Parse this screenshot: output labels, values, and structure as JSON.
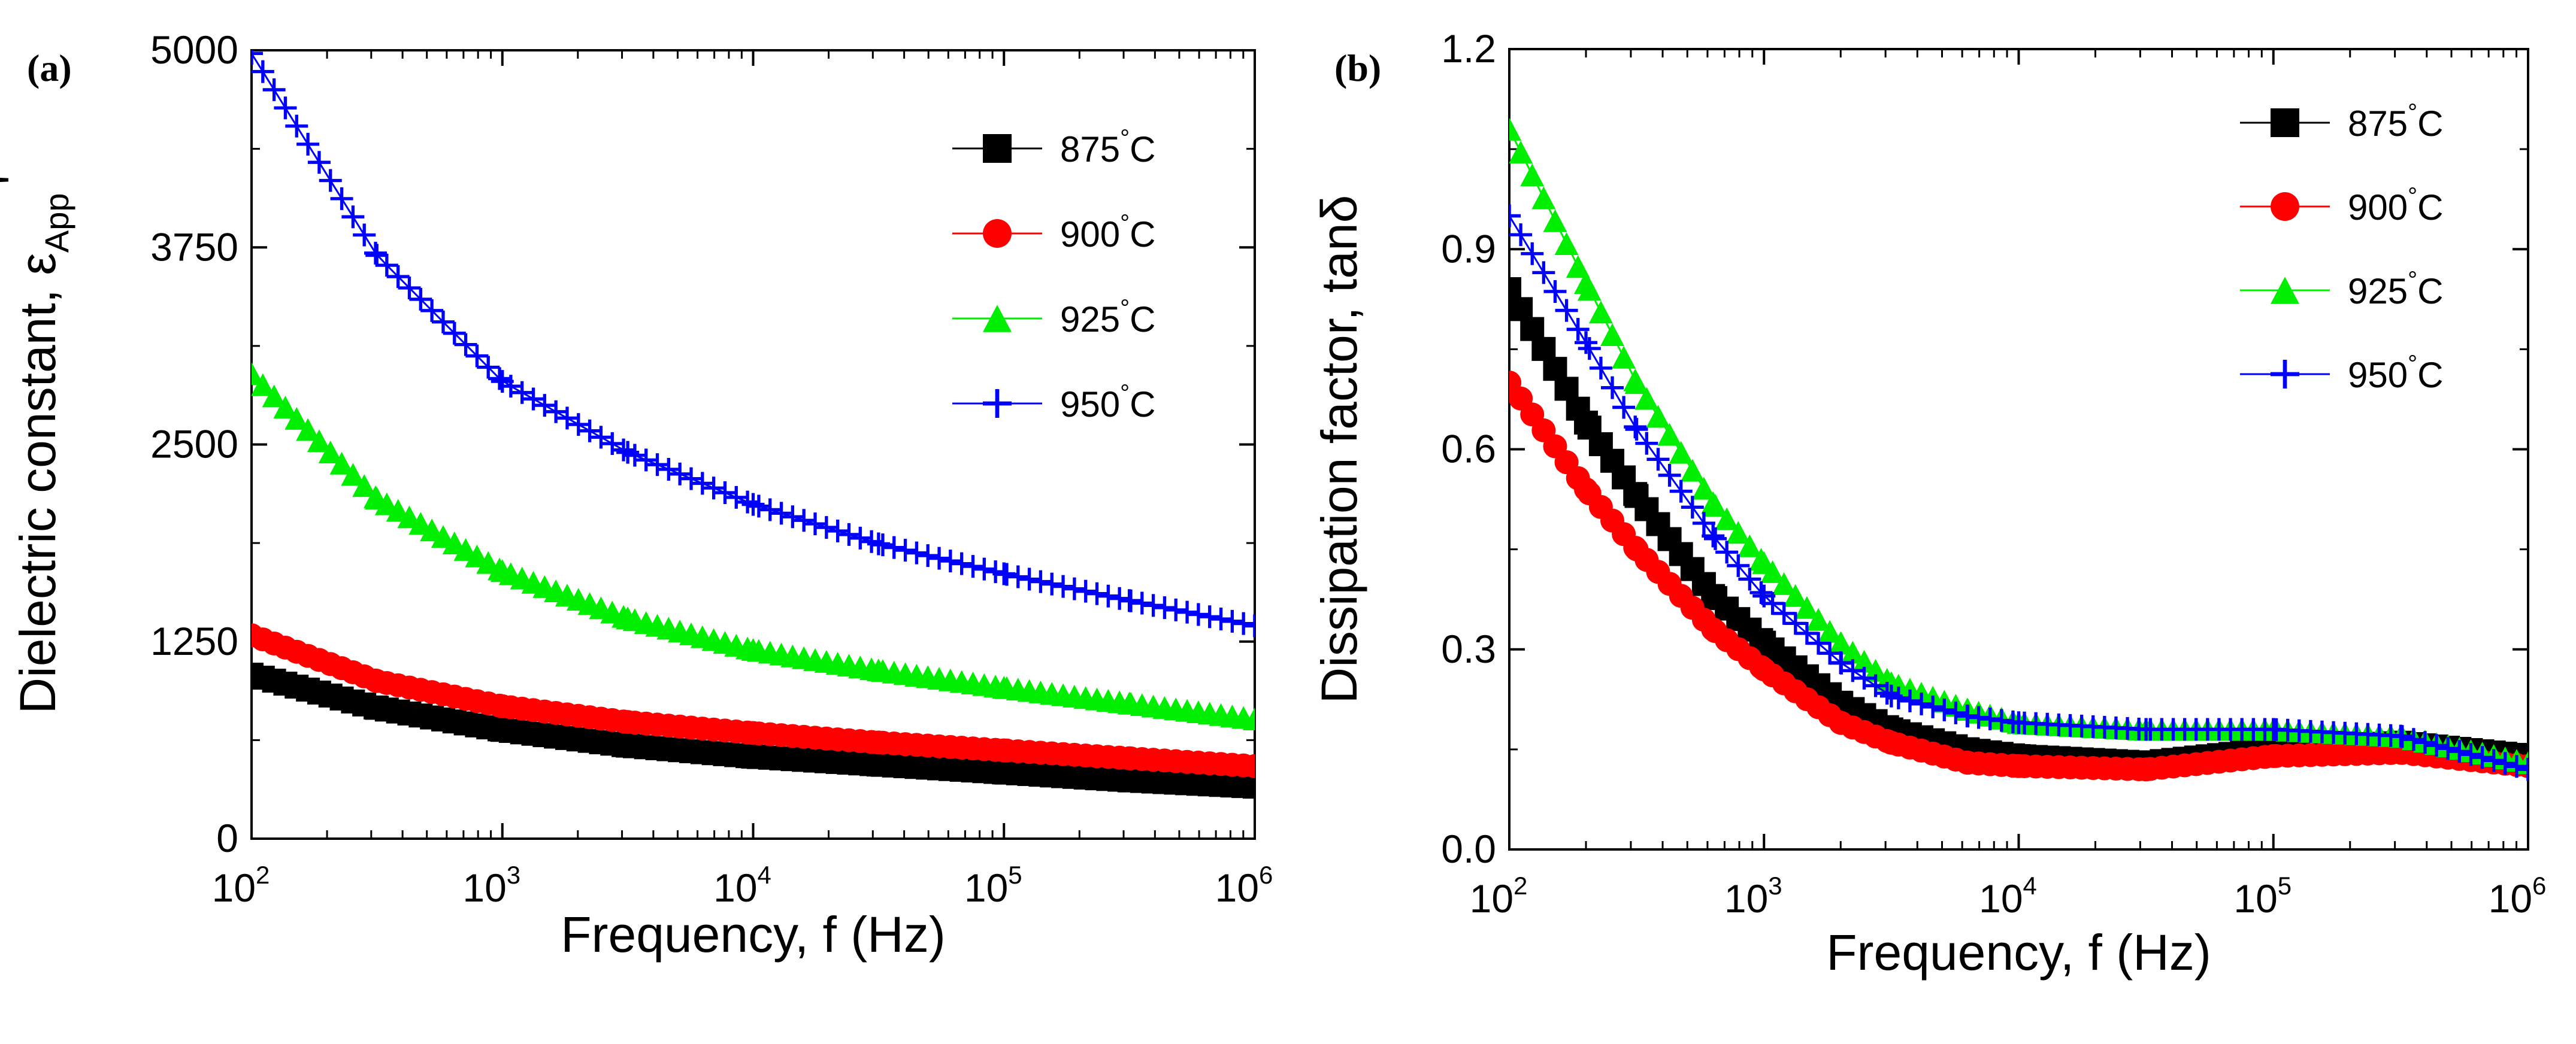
{
  "chart_data": [
    {
      "panel_label": "(a)",
      "type": "scatter",
      "x_scale": "log",
      "xlim": [
        100,
        1000000
      ],
      "ylim": [
        0,
        5000
      ],
      "xlabel": "Frequency, f (Hz)",
      "ylabel": "Dielectric constant, ε",
      "ylabel_sub": "App",
      "ylabel_prime": "'",
      "x_ticks": [
        {
          "base": "10",
          "exp": "2",
          "value": 100
        },
        {
          "base": "10",
          "exp": "3",
          "value": 1000
        },
        {
          "base": "10",
          "exp": "4",
          "value": 10000
        },
        {
          "base": "10",
          "exp": "5",
          "value": 100000
        },
        {
          "base": "10",
          "exp": "6",
          "value": 1000000
        }
      ],
      "y_ticks": [
        {
          "label": "0",
          "value": 0
        },
        {
          "label": "1250",
          "value": 1250
        },
        {
          "label": "2500",
          "value": 2500
        },
        {
          "label": "3750",
          "value": 3750
        },
        {
          "label": "5000",
          "value": 5000
        }
      ],
      "grid": false,
      "legend_position": "top-right",
      "series": [
        {
          "name": "875",
          "unit": "°C",
          "marker": "square",
          "color": "#000000",
          "x": [
            100,
            316,
            1000,
            3162,
            10000,
            31623,
            100000,
            316228,
            1000000
          ],
          "y": [
            1040,
            830,
            690,
            590,
            520,
            470,
            420,
            370,
            330
          ]
        },
        {
          "name": "900",
          "unit": "°C",
          "marker": "circle",
          "color": "#ff0000",
          "x": [
            100,
            316,
            1000,
            3162,
            10000,
            31623,
            100000,
            316228,
            1000000
          ],
          "y": [
            1290,
            1000,
            840,
            740,
            670,
            610,
            560,
            510,
            460
          ]
        },
        {
          "name": "925",
          "unit": "°C",
          "marker": "triangle",
          "color": "#00ee00",
          "x": [
            100,
            316,
            1000,
            3162,
            10000,
            31623,
            100000,
            316228,
            1000000
          ],
          "y": [
            2950,
            2160,
            1700,
            1400,
            1200,
            1070,
            960,
            860,
            760
          ]
        },
        {
          "name": "950",
          "unit": "°C",
          "marker": "plus",
          "color": "#0000ff",
          "x": [
            100,
            316,
            1000,
            3162,
            10000,
            31623,
            100000,
            316228,
            1000000
          ],
          "y": [
            4980,
            3700,
            2900,
            2450,
            2120,
            1870,
            1680,
            1510,
            1350
          ]
        }
      ]
    },
    {
      "panel_label": "(b)",
      "type": "scatter",
      "x_scale": "log",
      "xlim": [
        100,
        1000000
      ],
      "ylim": [
        0,
        1.2
      ],
      "xlabel": "Frequency, f (Hz)",
      "ylabel": "Dissipation factor, tanδ",
      "x_ticks": [
        {
          "base": "10",
          "exp": "2",
          "value": 100
        },
        {
          "base": "10",
          "exp": "3",
          "value": 1000
        },
        {
          "base": "10",
          "exp": "4",
          "value": 10000
        },
        {
          "base": "10",
          "exp": "5",
          "value": 100000
        },
        {
          "base": "10",
          "exp": "6",
          "value": 1000000
        }
      ],
      "y_ticks": [
        {
          "label": "0.0",
          "value": 0
        },
        {
          "label": "0.3",
          "value": 0.3
        },
        {
          "label": "0.6",
          "value": 0.6
        },
        {
          "label": "0.9",
          "value": 0.9
        },
        {
          "label": "1.2",
          "value": 1.2
        }
      ],
      "grid": false,
      "legend_position": "top-right",
      "series": [
        {
          "name": "875",
          "unit": "°C",
          "marker": "square",
          "color": "#000000",
          "x": [
            100,
            200,
            316,
            631,
            1000,
            2000,
            3162,
            6310,
            10000,
            31623,
            100000,
            316228,
            1000000
          ],
          "y": [
            0.84,
            0.64,
            0.53,
            0.38,
            0.31,
            0.22,
            0.18,
            0.15,
            0.14,
            0.13,
            0.15,
            0.16,
            0.14
          ]
        },
        {
          "name": "900",
          "unit": "°C",
          "marker": "circle",
          "color": "#ff0000",
          "x": [
            100,
            200,
            316,
            631,
            1000,
            2000,
            3162,
            6310,
            10000,
            31623,
            100000,
            316228,
            1000000
          ],
          "y": [
            0.7,
            0.54,
            0.45,
            0.33,
            0.27,
            0.19,
            0.16,
            0.13,
            0.125,
            0.12,
            0.14,
            0.145,
            0.125
          ]
        },
        {
          "name": "925",
          "unit": "°C",
          "marker": "triangle",
          "color": "#00ee00",
          "x": [
            100,
            200,
            316,
            631,
            1000,
            2000,
            3162,
            6310,
            10000,
            31623,
            100000,
            316228,
            1000000
          ],
          "y": [
            1.08,
            0.85,
            0.7,
            0.52,
            0.43,
            0.31,
            0.25,
            0.21,
            0.19,
            0.18,
            0.18,
            0.17,
            0.13
          ]
        },
        {
          "name": "950",
          "unit": "°C",
          "marker": "plus",
          "color": "#0000ff",
          "x": [
            100,
            200,
            316,
            631,
            1000,
            2000,
            3162,
            6310,
            10000,
            31623,
            100000,
            316228,
            1000000
          ],
          "y": [
            0.95,
            0.76,
            0.63,
            0.47,
            0.38,
            0.28,
            0.23,
            0.2,
            0.19,
            0.18,
            0.18,
            0.17,
            0.12
          ]
        }
      ]
    }
  ]
}
